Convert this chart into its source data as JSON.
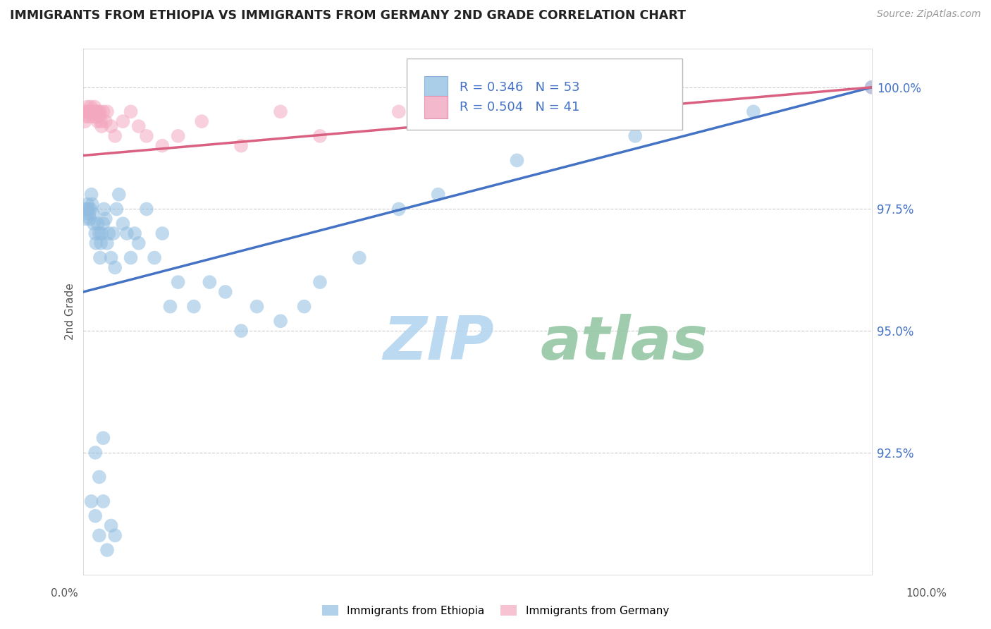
{
  "title": "IMMIGRANTS FROM ETHIOPIA VS IMMIGRANTS FROM GERMANY 2ND GRADE CORRELATION CHART",
  "source": "Source: ZipAtlas.com",
  "ylabel": "2nd Grade",
  "r_blue": 0.346,
  "n_blue": 53,
  "r_pink": 0.504,
  "n_pink": 41,
  "blue_color": "#90bce0",
  "pink_color": "#f4a8c0",
  "trend_blue": "#4472c4",
  "trend_pink": "#d96080",
  "blue_legend_color": "#aacde8",
  "pink_legend_color": "#f4b8cc",
  "xmin": 0.0,
  "xmax": 100.0,
  "ymin": 90.0,
  "ymax": 100.8,
  "yticks": [
    100.0,
    97.5,
    95.0,
    92.5
  ],
  "ytick_labels": [
    "100.0%",
    "97.5%",
    "95.0%",
    "92.5%"
  ],
  "background": "#ffffff",
  "grid_color": "#cccccc",
  "watermark_zip": "ZIP",
  "watermark_atlas": "atlas",
  "watermark_color_zip": "#b0d4f0",
  "watermark_color_atlas": "#90c4a0",
  "eth_x": [
    0.2,
    0.3,
    0.5,
    0.6,
    0.7,
    0.8,
    0.9,
    1.0,
    1.1,
    1.2,
    1.3,
    1.5,
    1.6,
    1.8,
    2.0,
    2.1,
    2.2,
    2.3,
    2.5,
    2.6,
    2.8,
    3.0,
    3.2,
    3.5,
    3.8,
    4.0,
    4.2,
    4.5,
    5.0,
    5.5,
    6.0,
    6.5,
    7.0,
    8.0,
    9.0,
    10.0,
    11.0,
    12.0,
    14.0,
    16.0,
    18.0,
    20.0,
    22.0,
    25.0,
    28.0,
    30.0,
    35.0,
    40.0,
    45.0,
    55.0,
    70.0,
    85.0,
    100.0
  ],
  "eth_y": [
    97.5,
    97.3,
    97.6,
    97.5,
    97.4,
    97.3,
    97.5,
    97.8,
    97.6,
    97.4,
    97.2,
    97.0,
    96.8,
    97.2,
    97.0,
    96.5,
    96.8,
    97.0,
    97.2,
    97.5,
    97.3,
    96.8,
    97.0,
    96.5,
    97.0,
    96.3,
    97.5,
    97.8,
    97.2,
    97.0,
    96.5,
    97.0,
    96.8,
    97.5,
    96.5,
    97.0,
    95.5,
    96.0,
    95.5,
    96.0,
    95.8,
    95.0,
    95.5,
    95.2,
    95.5,
    96.0,
    96.5,
    97.5,
    97.8,
    98.5,
    99.0,
    99.5,
    100.0
  ],
  "eth_x_low": [
    1.5,
    2.0,
    2.5,
    3.0,
    3.5,
    4.0,
    1.0,
    2.0,
    1.5,
    2.5
  ],
  "eth_y_low": [
    91.2,
    90.8,
    91.5,
    90.5,
    91.0,
    90.8,
    91.5,
    92.0,
    92.5,
    92.8
  ],
  "ger_x": [
    0.1,
    0.2,
    0.3,
    0.4,
    0.5,
    0.6,
    0.7,
    0.8,
    0.9,
    1.0,
    1.1,
    1.2,
    1.3,
    1.4,
    1.5,
    1.6,
    1.7,
    1.8,
    1.9,
    2.0,
    2.1,
    2.2,
    2.3,
    2.5,
    2.8,
    3.0,
    3.5,
    4.0,
    5.0,
    6.0,
    7.0,
    8.0,
    10.0,
    12.0,
    15.0,
    20.0,
    25.0,
    30.0,
    40.0,
    75.0,
    100.0
  ],
  "ger_y": [
    99.5,
    99.3,
    99.4,
    99.5,
    99.6,
    99.5,
    99.4,
    99.5,
    99.6,
    99.5,
    99.5,
    99.4,
    99.5,
    99.6,
    99.5,
    99.4,
    99.5,
    99.3,
    99.5,
    99.4,
    99.5,
    99.3,
    99.2,
    99.5,
    99.3,
    99.5,
    99.2,
    99.0,
    99.3,
    99.5,
    99.2,
    99.0,
    98.8,
    99.0,
    99.3,
    98.8,
    99.5,
    99.0,
    99.5,
    99.8,
    100.0
  ],
  "blue_trend_x0": 0.0,
  "blue_trend_y0": 95.8,
  "blue_trend_x1": 100.0,
  "blue_trend_y1": 100.0,
  "pink_trend_x0": 0.0,
  "pink_trend_y0": 98.6,
  "pink_trend_x1": 100.0,
  "pink_trend_y1": 100.0
}
